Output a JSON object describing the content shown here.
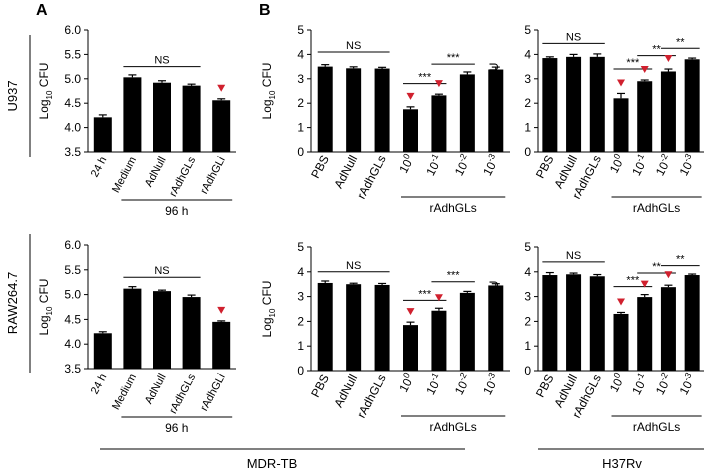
{
  "panel_letters": {
    "a": "A",
    "b": "B"
  },
  "row_labels": [
    "U937",
    "RAW264.7"
  ],
  "bottom_labels": {
    "mdr": "MDR-TB",
    "h37": "H37Rv"
  },
  "style": {
    "bar_color": "#000000",
    "marker_color": "#d0202e"
  },
  "chart_data": [
    {
      "id": "A-U937",
      "type": "bar",
      "categories": [
        "24 h",
        "Medium",
        "AdNull",
        "rAdhGLs",
        "rAdhGLi"
      ],
      "values": [
        4.21,
        5.03,
        4.92,
        4.86,
        4.56
      ],
      "errors": [
        0.05,
        0.05,
        0.04,
        0.03,
        0.03
      ],
      "ylim": [
        3.5,
        6.0
      ],
      "yticks": [
        3.5,
        4.0,
        4.5,
        5.0,
        5.5,
        6.0
      ],
      "tick_decimals": 1,
      "ylabel": "Log10 CFU",
      "group_label": "96 h",
      "group_range": [
        1,
        4
      ],
      "markers": [
        4
      ],
      "annotations": [
        {
          "from": 1,
          "to": 3,
          "y": 5.25,
          "text": "NS"
        }
      ]
    },
    {
      "id": "B-U937-MDR",
      "type": "bar",
      "categories": [
        "PBS",
        "AdNull",
        "rAdhGLs",
        "10^0",
        "10^-1",
        "10^-2",
        "10^-3"
      ],
      "values": [
        3.5,
        3.43,
        3.42,
        1.75,
        2.32,
        3.18,
        3.38
      ],
      "errors": [
        0.08,
        0.06,
        0.05,
        0.1,
        0.05,
        0.1,
        0.1
      ],
      "ylim": [
        0,
        5
      ],
      "yticks": [
        0,
        1,
        2,
        3,
        4,
        5
      ],
      "tick_decimals": 0,
      "ylabel": "Log10 CFU",
      "group_label": "rAdhGLs",
      "group_range": [
        3,
        6
      ],
      "markers": [
        3,
        4
      ],
      "annotations": [
        {
          "from": 0,
          "to": 2,
          "y": 4.1,
          "text": "NS"
        },
        {
          "from": 3,
          "to": 4,
          "y": 2.8,
          "text": "***"
        },
        {
          "from": 4,
          "to": 5,
          "y": 3.6,
          "text": "***"
        }
      ]
    },
    {
      "id": "B-U937-H37Rv",
      "type": "bar",
      "categories": [
        "PBS",
        "AdNull",
        "rAdhGLs",
        "10^0",
        "10^-1",
        "10^-2",
        "10^-3"
      ],
      "values": [
        3.85,
        3.9,
        3.9,
        2.2,
        2.9,
        3.3,
        3.8
      ],
      "errors": [
        0.05,
        0.1,
        0.12,
        0.2,
        0.05,
        0.1,
        0.05
      ],
      "ylim": [
        0,
        5
      ],
      "yticks": [
        0,
        1,
        2,
        3,
        4,
        5
      ],
      "tick_decimals": 0,
      "ylabel": "Log10 CFU",
      "group_label": "rAdhGLs",
      "group_range": [
        3,
        6
      ],
      "markers": [
        3,
        4,
        5
      ],
      "annotations": [
        {
          "from": 0,
          "to": 2,
          "y": 4.45,
          "text": "NS"
        },
        {
          "from": 3,
          "to": 4,
          "y": 3.4,
          "text": "***"
        },
        {
          "from": 4,
          "to": 5,
          "y": 3.95,
          "text": "**"
        },
        {
          "from": 5,
          "to": 6,
          "y": 4.25,
          "text": "**"
        }
      ]
    },
    {
      "id": "A-RAW",
      "type": "bar",
      "categories": [
        "24 h",
        "Medium",
        "AdNull",
        "rAdhGLs",
        "rAdhGLi"
      ],
      "values": [
        4.22,
        5.12,
        5.07,
        4.95,
        4.45
      ],
      "errors": [
        0.03,
        0.04,
        0.02,
        0.04,
        0.02
      ],
      "ylim": [
        3.5,
        6.0
      ],
      "yticks": [
        3.5,
        4.0,
        4.5,
        5.0,
        5.5,
        6.0
      ],
      "tick_decimals": 1,
      "ylabel": "Log10 CFU",
      "group_label": "96 h",
      "group_range": [
        1,
        4
      ],
      "markers": [
        4
      ],
      "annotations": [
        {
          "from": 1,
          "to": 3,
          "y": 5.35,
          "text": "NS"
        }
      ]
    },
    {
      "id": "B-RAW-MDR",
      "type": "bar",
      "categories": [
        "PBS",
        "AdNull",
        "rAdhGLs",
        "10^0",
        "10^-1",
        "10^-2",
        "10^-3"
      ],
      "values": [
        3.55,
        3.5,
        3.47,
        1.85,
        2.43,
        3.15,
        3.45
      ],
      "errors": [
        0.08,
        0.04,
        0.06,
        0.12,
        0.1,
        0.06,
        0.07
      ],
      "ylim": [
        0,
        5
      ],
      "yticks": [
        0,
        1,
        2,
        3,
        4,
        5
      ],
      "tick_decimals": 0,
      "ylabel": "Log10 CFU",
      "group_label": "rAdhGLs",
      "group_range": [
        3,
        6
      ],
      "markers": [
        3,
        4
      ],
      "annotations": [
        {
          "from": 0,
          "to": 2,
          "y": 4.0,
          "text": "NS"
        },
        {
          "from": 3,
          "to": 4,
          "y": 2.85,
          "text": "***"
        },
        {
          "from": 4,
          "to": 5,
          "y": 3.6,
          "text": "***"
        }
      ]
    },
    {
      "id": "B-RAW-H37Rv",
      "type": "bar",
      "categories": [
        "PBS",
        "AdNull",
        "rAdhGLs",
        "10^0",
        "10^-1",
        "10^-2",
        "10^-3"
      ],
      "values": [
        3.87,
        3.9,
        3.82,
        2.3,
        2.98,
        3.38,
        3.87
      ],
      "errors": [
        0.1,
        0.05,
        0.07,
        0.06,
        0.1,
        0.08,
        0.04
      ],
      "ylim": [
        0,
        5
      ],
      "yticks": [
        0,
        1,
        2,
        3,
        4,
        5
      ],
      "tick_decimals": 0,
      "ylabel": "Log10 CFU",
      "group_label": "rAdhGLs",
      "group_range": [
        3,
        6
      ],
      "markers": [
        3,
        4,
        5
      ],
      "annotations": [
        {
          "from": 0,
          "to": 2,
          "y": 4.4,
          "text": "NS"
        },
        {
          "from": 3,
          "to": 4,
          "y": 3.4,
          "text": "***"
        },
        {
          "from": 4,
          "to": 5,
          "y": 3.95,
          "text": "**"
        },
        {
          "from": 5,
          "to": 6,
          "y": 4.25,
          "text": "**"
        }
      ]
    }
  ]
}
